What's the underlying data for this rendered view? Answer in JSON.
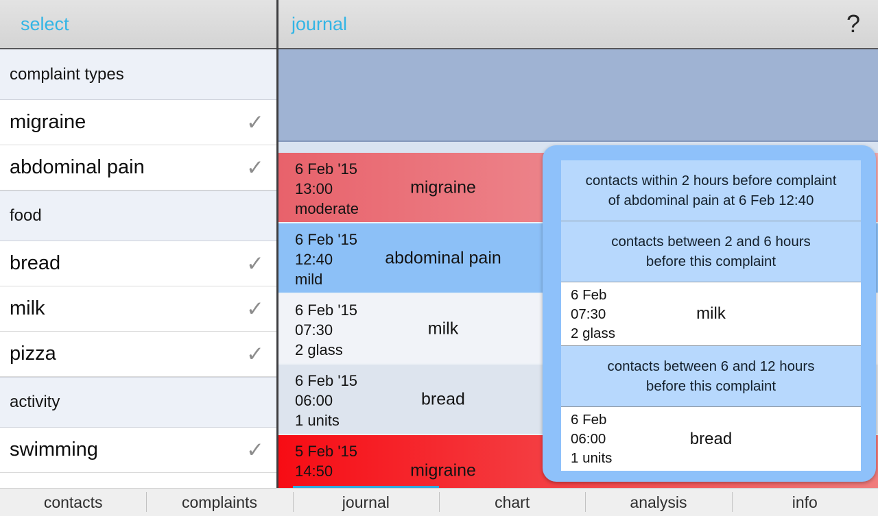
{
  "header": {
    "left_title": "select",
    "right_title": "journal",
    "help_label": "?"
  },
  "sidebar": {
    "check_glyph": "✓",
    "sections": [
      {
        "label": "complaint types",
        "items": [
          {
            "label": "migraine",
            "checked": true
          },
          {
            "label": "abdominal pain",
            "checked": true
          }
        ]
      },
      {
        "label": "food",
        "items": [
          {
            "label": "bread",
            "checked": true
          },
          {
            "label": "milk",
            "checked": true
          },
          {
            "label": "pizza",
            "checked": true
          }
        ]
      },
      {
        "label": "activity",
        "items": [
          {
            "label": "swimming",
            "checked": true
          }
        ]
      }
    ]
  },
  "journal": {
    "entries": [
      {
        "date": "6 Feb '15",
        "time": "13:00",
        "detail": "moderate",
        "name": "migraine"
      },
      {
        "date": "6 Feb '15",
        "time": "12:40",
        "detail": "mild",
        "name": "abdominal pain"
      },
      {
        "date": "6 Feb '15",
        "time": "07:30",
        "detail": "2 glass",
        "name": "milk"
      },
      {
        "date": "6 Feb '15",
        "time": "06:00",
        "detail": "1 units",
        "name": "bread"
      },
      {
        "date": "5 Feb '15",
        "time": "14:50",
        "detail": "",
        "name": "migraine"
      }
    ]
  },
  "popup": {
    "sections": [
      {
        "kind": "info",
        "lines": [
          "contacts within 2 hours before complaint",
          "of abdominal pain at 6 Feb 12:40"
        ]
      },
      {
        "kind": "info",
        "lines": [
          "contacts between 2 and 6 hours",
          "before this complaint"
        ]
      },
      {
        "kind": "entry",
        "date": "6 Feb",
        "time": "07:30",
        "detail": "2 glass",
        "name": "milk"
      },
      {
        "kind": "info",
        "lines": [
          "contacts between 6 and 12 hours",
          "before this complaint"
        ]
      },
      {
        "kind": "entry",
        "date": "6 Feb",
        "time": "06:00",
        "detail": "1 units",
        "name": "bread"
      }
    ]
  },
  "tabbar": {
    "tabs": [
      {
        "label": "contacts"
      },
      {
        "label": "complaints"
      },
      {
        "label": "journal",
        "active": true
      },
      {
        "label": "chart"
      },
      {
        "label": "analysis"
      },
      {
        "label": "info"
      }
    ]
  },
  "colors": {
    "accent_blue": "#33b5e5",
    "severity_moderate_red": "#e8626b",
    "severity_high_red": "#f70c14",
    "complaint_mild_blue": "#8cc0f7",
    "popup_blue": "#8ec1fa",
    "popup_section_blue": "#b7d8fd",
    "summary_panel_slate": "#9fb3d3"
  }
}
